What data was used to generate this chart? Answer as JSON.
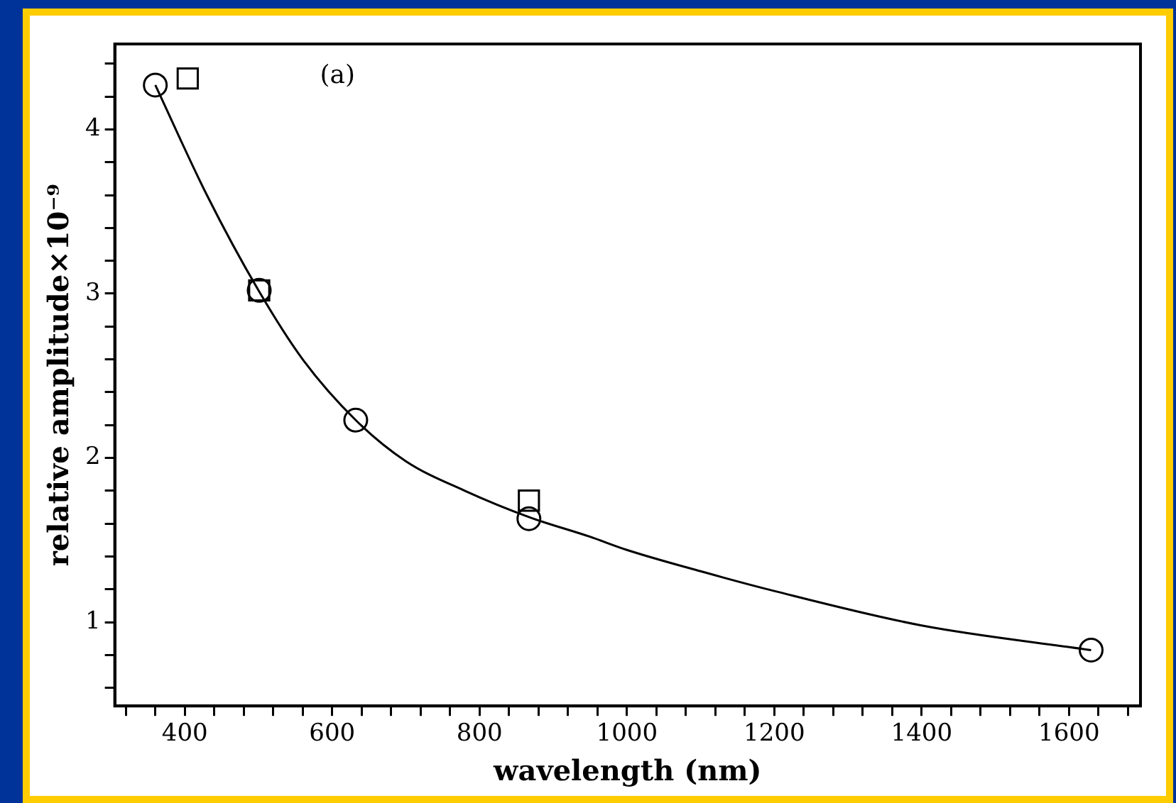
{
  "chart_data": {
    "type": "scatter",
    "xlabel": "wavelength (nm)",
    "ylabel": "relative amplitude×10⁻⁹",
    "annotations": [
      "(a)"
    ],
    "xlim": [
      305,
      1697
    ],
    "ylim": [
      0.49,
      4.52
    ],
    "xticks": [
      {
        "value": 320,
        "label": null
      },
      {
        "value": 360,
        "label": null
      },
      400,
      {
        "value": 440,
        "label": null
      },
      {
        "value": 480,
        "label": null
      },
      {
        "value": 520,
        "label": null
      },
      {
        "value": 560,
        "label": null
      },
      600,
      {
        "value": 640,
        "label": null
      },
      {
        "value": 680,
        "label": null
      },
      {
        "value": 720,
        "label": null
      },
      {
        "value": 760,
        "label": null
      },
      800,
      {
        "value": 840,
        "label": null
      },
      {
        "value": 880,
        "label": null
      },
      {
        "value": 920,
        "label": null
      },
      {
        "value": 960,
        "label": null
      },
      1000,
      {
        "value": 1040,
        "label": null
      },
      {
        "value": 1080,
        "label": null
      },
      {
        "value": 1120,
        "label": null
      },
      {
        "value": 1160,
        "label": null
      },
      1200,
      {
        "value": 1240,
        "label": null
      },
      {
        "value": 1280,
        "label": null
      },
      {
        "value": 1320,
        "label": null
      },
      {
        "value": 1360,
        "label": null
      },
      1400,
      {
        "value": 1440,
        "label": null
      },
      {
        "value": 1480,
        "label": null
      },
      {
        "value": 1520,
        "label": null
      },
      {
        "value": 1560,
        "label": null
      },
      1600,
      {
        "value": 1640,
        "label": null
      },
      {
        "value": 1680,
        "label": null
      }
    ],
    "yticks": [
      {
        "value": 0.6,
        "label": null
      },
      {
        "value": 0.8,
        "label": null
      },
      1,
      {
        "value": 1.2,
        "label": null
      },
      {
        "value": 1.4,
        "label": null
      },
      {
        "value": 1.6,
        "label": null
      },
      {
        "value": 1.8,
        "label": null
      },
      2,
      {
        "value": 2.2,
        "label": null
      },
      {
        "value": 2.4,
        "label": null
      },
      {
        "value": 2.6,
        "label": null
      },
      {
        "value": 2.8,
        "label": null
      },
      3,
      {
        "value": 3.2,
        "label": null
      },
      {
        "value": 3.4,
        "label": null
      },
      {
        "value": 3.6,
        "label": null
      },
      {
        "value": 3.8,
        "label": null
      },
      4,
      {
        "value": 4.2,
        "label": null
      },
      {
        "value": 4.4,
        "label": null
      }
    ],
    "grid": false,
    "legend": false,
    "series": [
      {
        "type": "line",
        "marker": "none",
        "color": "#000000",
        "x": [
          360,
          430,
          500,
          560,
          632,
          700,
          780,
          867,
          950,
          1000,
          1100,
          1200,
          1400,
          1630
        ],
        "values": [
          4.27,
          3.6,
          3.02,
          2.6,
          2.23,
          1.98,
          1.8,
          1.64,
          1.52,
          1.44,
          1.31,
          1.19,
          0.98,
          0.83
        ]
      },
      {
        "marker": "circle",
        "color": "#000000",
        "x": [
          360,
          501,
          632,
          867,
          1630
        ],
        "values": [
          4.27,
          3.02,
          2.23,
          1.63,
          0.83
        ]
      },
      {
        "marker": "square",
        "color": "#000000",
        "x": [
          404,
          501,
          867
        ],
        "values": [
          4.31,
          3.02,
          1.74
        ]
      }
    ]
  }
}
